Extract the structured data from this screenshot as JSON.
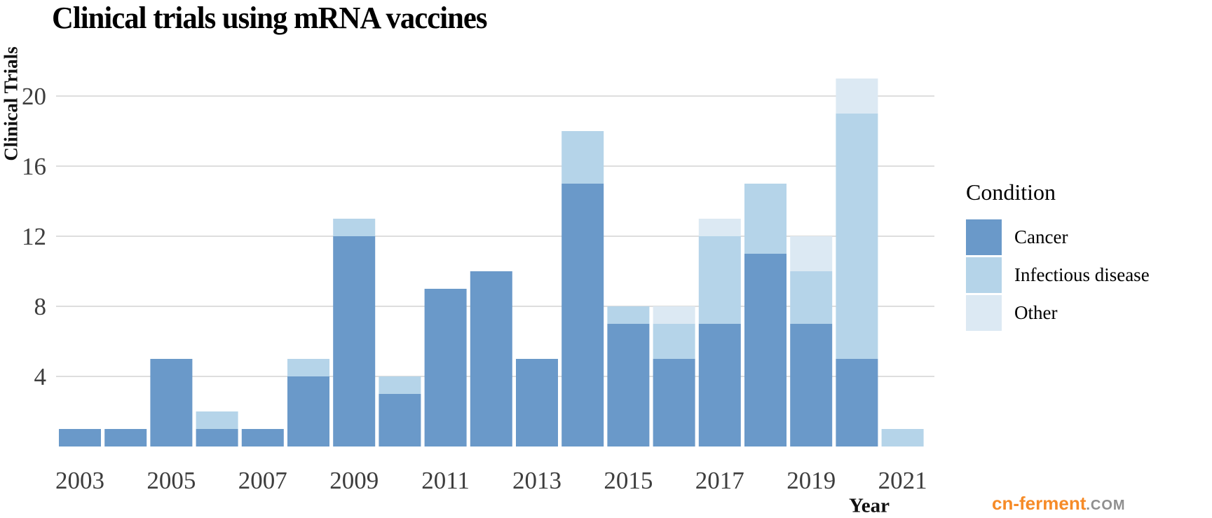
{
  "title": "Clinical trials using mRNA vaccines",
  "chart_data": {
    "type": "bar",
    "stacked": true,
    "title": "Clinical trials using mRNA vaccines",
    "xlabel": "Year",
    "ylabel": "Clinical Trials",
    "categories": [
      2003,
      2004,
      2005,
      2006,
      2007,
      2008,
      2009,
      2010,
      2011,
      2012,
      2013,
      2014,
      2015,
      2016,
      2017,
      2018,
      2019,
      2020,
      2021
    ],
    "x_tick_labels": [
      "2003",
      "2005",
      "2007",
      "2009",
      "2011",
      "2013",
      "2015",
      "2017",
      "2019",
      "2021"
    ],
    "yticks": [
      4,
      8,
      12,
      16,
      20
    ],
    "ylim": [
      0,
      21
    ],
    "grid": "horizontal-only",
    "legend_position": "right",
    "legend_title": "Condition",
    "series": [
      {
        "name": "Cancer",
        "color": "#6a99c9",
        "values": [
          1,
          1,
          5,
          1,
          1,
          4,
          12,
          3,
          9,
          10,
          5,
          15,
          7,
          5,
          7,
          11,
          7,
          5,
          0
        ]
      },
      {
        "name": "Infectious disease",
        "color": "#b5d4e9",
        "values": [
          0,
          0,
          0,
          1,
          0,
          1,
          1,
          1,
          0,
          0,
          0,
          3,
          1,
          2,
          5,
          4,
          3,
          14,
          1
        ]
      },
      {
        "name": "Other",
        "color": "#dce9f3",
        "values": [
          0,
          0,
          0,
          0,
          0,
          0,
          0,
          0,
          0,
          0,
          0,
          0,
          0,
          1,
          1,
          0,
          2,
          2,
          0
        ]
      }
    ],
    "totals": [
      1,
      1,
      5,
      2,
      1,
      5,
      13,
      4,
      9,
      10,
      5,
      18,
      8,
      8,
      13,
      15,
      12,
      21,
      1
    ]
  },
  "legend": {
    "title": "Condition",
    "items": [
      "Cancer",
      "Infectious disease",
      "Other"
    ]
  },
  "watermark": {
    "brand": "cn-ferment",
    "suffix": ".COM",
    "brand_color": "#f68b28",
    "suffix_color": "#8f8f8f"
  },
  "colors": {
    "gridline": "#c9c9c9",
    "tick_text": "#3d3d3d",
    "bar_cancer": "#6a99c9",
    "bar_infectious": "#b5d4e9",
    "bar_other": "#dce9f3"
  }
}
